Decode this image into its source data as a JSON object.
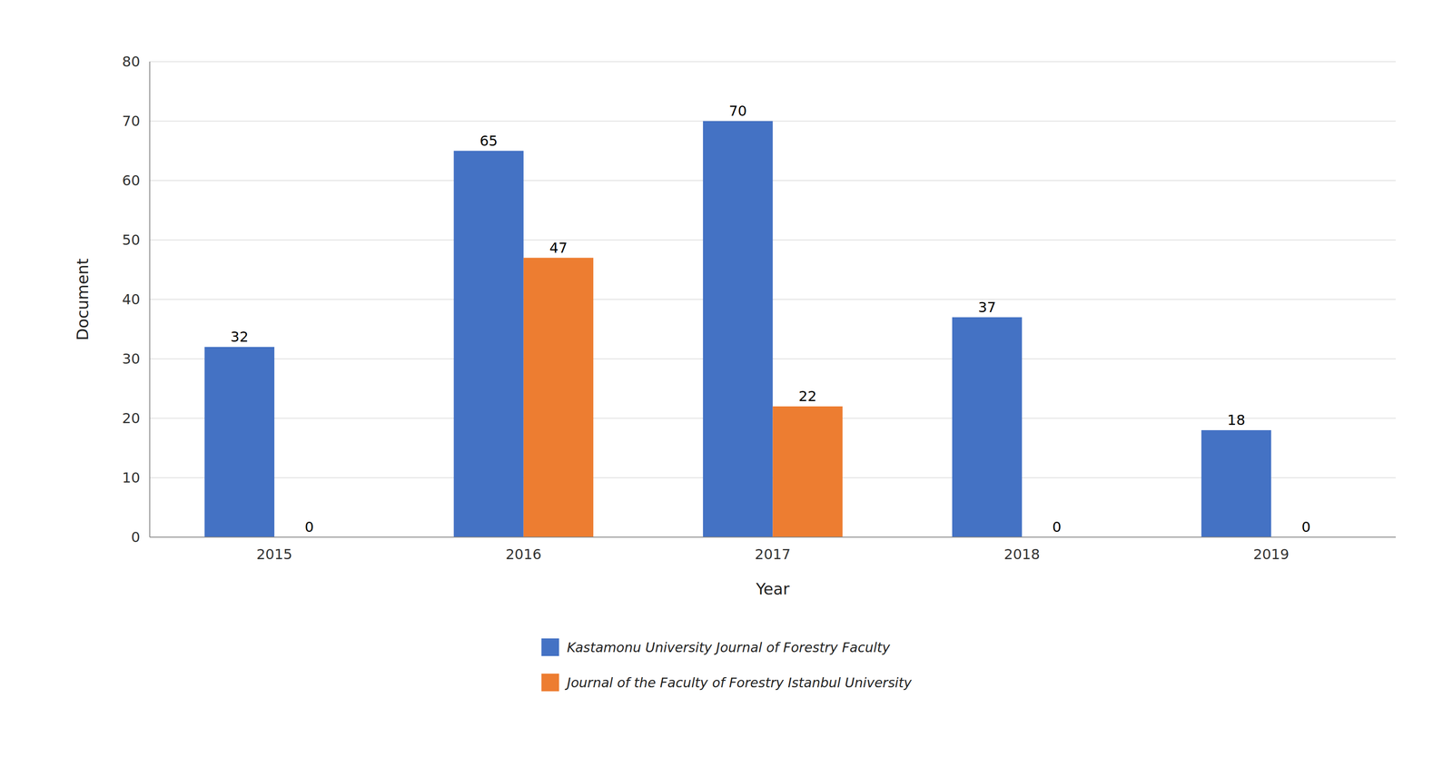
{
  "chart_data": {
    "type": "bar",
    "categories": [
      "2015",
      "2016",
      "2017",
      "2018",
      "2019"
    ],
    "series": [
      {
        "name": "Kastamonu University Journal of Forestry Faculty",
        "color": "#4472C4",
        "values": [
          32,
          65,
          70,
          37,
          18
        ]
      },
      {
        "name": "Journal of the Faculty of Forestry Istanbul University",
        "color": "#ED7D31",
        "values": [
          0,
          47,
          22,
          0,
          0
        ]
      }
    ],
    "xlabel": "Year",
    "ylabel": "Document",
    "ylim": [
      0,
      80
    ],
    "yticks": [
      0,
      10,
      20,
      30,
      40,
      50,
      60,
      70,
      80
    ],
    "grid": true,
    "data_labels": true,
    "legend": "bottom"
  }
}
